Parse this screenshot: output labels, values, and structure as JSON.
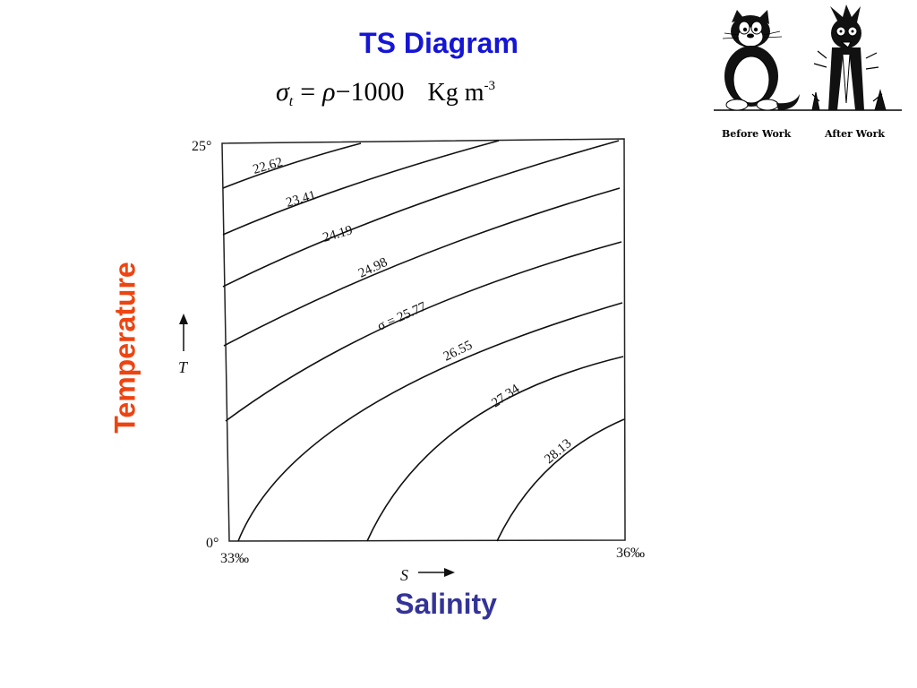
{
  "title": "TS Diagram",
  "formula": {
    "sigma": "σ",
    "subscript": "t",
    "equals": "=",
    "rho": "ρ",
    "minus": "−",
    "constant": "1000",
    "unit": "Kg m",
    "unit_exponent": "-3"
  },
  "y_axis_label": "Temperature",
  "x_axis_label": "Salinity",
  "plot": {
    "t_top_label": "25°",
    "t_bottom_label": "0°",
    "s_left_label": "33‰",
    "s_right_label": "36‰",
    "t_symbol": "T",
    "s_symbol": "S",
    "contour_labels": [
      "22.62",
      "23.41",
      "24.19",
      "24.98",
      "σ = 25.77",
      "26.55",
      "27.34",
      "28.13"
    ]
  },
  "cartoon": {
    "before_caption": "Before Work",
    "after_caption": "After Work"
  }
}
